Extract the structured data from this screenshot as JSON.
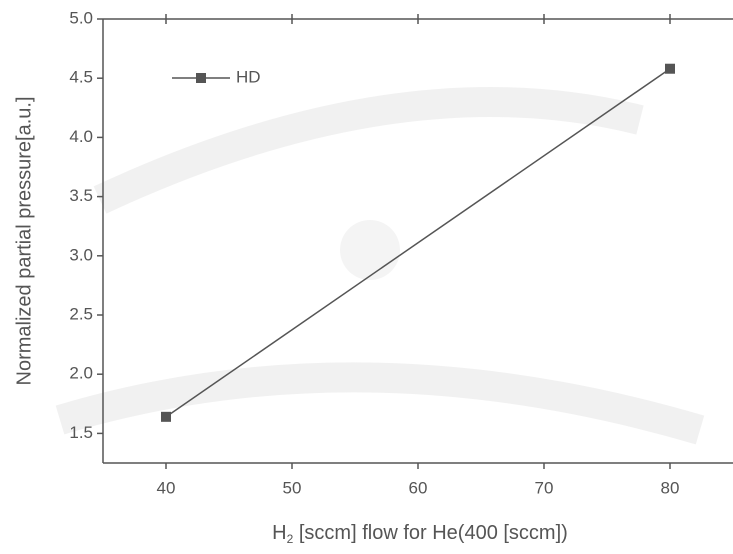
{
  "chart_data": {
    "type": "line",
    "x_label": {
      "base": "H",
      "subscript": "2",
      "rest": " [sccm] flow for He(400 [sccm])"
    },
    "y_label": "Normalized partial pressure[a.u.]",
    "x": [
      40,
      80
    ],
    "series": [
      {
        "name": "HD",
        "color": "#555555",
        "values": [
          1.64,
          4.58
        ]
      }
    ],
    "xlim": [
      35,
      85
    ],
    "xticks": [
      40,
      50,
      60,
      70,
      80
    ],
    "ylim": [
      1.25,
      5.0
    ],
    "yticks": [
      1.5,
      {
        "value": 2,
        "label": "2.0"
      },
      2.5,
      {
        "value": 3,
        "label": "3.0"
      },
      3.5,
      {
        "value": 4,
        "label": "4.0"
      },
      4.5,
      {
        "value": 5,
        "label": "5.0"
      }
    ],
    "legend": "top-left",
    "grid": false
  }
}
